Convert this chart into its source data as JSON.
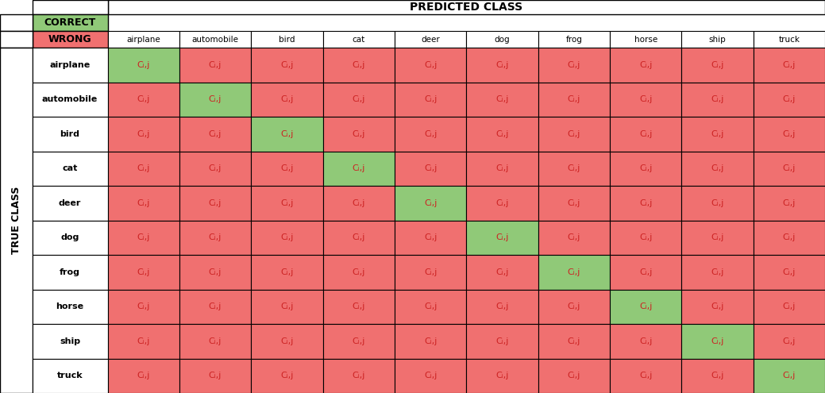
{
  "classes": [
    "airplane",
    "automobile",
    "bird",
    "cat",
    "deer",
    "dog",
    "frog",
    "horse",
    "ship",
    "truck"
  ],
  "cell_text": "Cᵢ,j",
  "diagonal_color": "#90c978",
  "off_diagonal_color": "#f07070",
  "header_correct_color": "#90c978",
  "header_wrong_color": "#f07070",
  "predicted_class_label": "PREDICTED CLASS",
  "true_class_label": "TRUE CLASS",
  "correct_label": "CORRECT",
  "wrong_label": "WRONG",
  "cell_text_color": "#cc2222",
  "background_color": "#ffffff",
  "border_color": "#000000",
  "figsize": [
    10.39,
    4.95
  ],
  "dpi": 100
}
